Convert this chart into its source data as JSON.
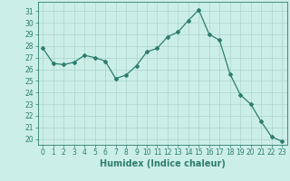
{
  "x": [
    0,
    1,
    2,
    3,
    4,
    5,
    6,
    7,
    8,
    9,
    10,
    11,
    12,
    13,
    14,
    15,
    16,
    17,
    18,
    19,
    20,
    21,
    22,
    23
  ],
  "y": [
    27.8,
    26.5,
    26.4,
    26.6,
    27.2,
    27.0,
    26.7,
    25.2,
    25.5,
    26.3,
    27.5,
    27.8,
    28.8,
    29.2,
    30.2,
    31.1,
    29.0,
    28.5,
    25.6,
    23.8,
    23.0,
    21.5,
    20.2,
    19.8
  ],
  "line_color": "#2d7d6e",
  "marker": "D",
  "markersize": 2.0,
  "linewidth": 0.9,
  "xlabel": "Humidex (Indice chaleur)",
  "bg_color": "#cceee8",
  "grid_color": "#aad4cc",
  "ylim": [
    19.5,
    31.8
  ],
  "xlim": [
    -0.5,
    23.5
  ],
  "yticks": [
    20,
    21,
    22,
    23,
    24,
    25,
    26,
    27,
    28,
    29,
    30,
    31
  ],
  "xticks": [
    0,
    1,
    2,
    3,
    4,
    5,
    6,
    7,
    8,
    9,
    10,
    11,
    12,
    13,
    14,
    15,
    16,
    17,
    18,
    19,
    20,
    21,
    22,
    23
  ],
  "tick_color": "#2d7d6e",
  "label_color": "#2d7d6e",
  "xlabel_fontsize": 7,
  "tick_fontsize": 5.5
}
